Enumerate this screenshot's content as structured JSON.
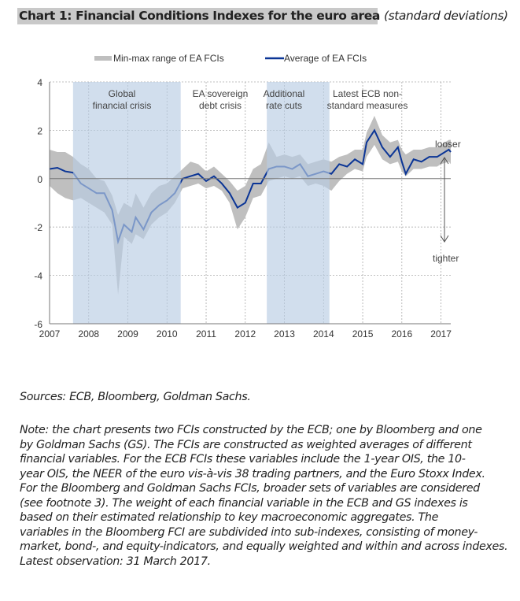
{
  "title": {
    "main": "Chart 1: Financial Conditions Indexes for the euro area",
    "unit": "(standard deviations)"
  },
  "chart_data": {
    "type": "line",
    "legend": {
      "placement": "top",
      "entries": [
        "Min-max range of EA FCIs",
        "Average of EA FCIs"
      ]
    },
    "ylim": [
      -6,
      4
    ],
    "yticks": [
      4,
      2,
      0,
      -2,
      -4,
      -6
    ],
    "xlim": [
      2007,
      2017.25
    ],
    "xticks": [
      2007,
      2008,
      2009,
      2010,
      2011,
      2012,
      2013,
      2014,
      2015,
      2016,
      2017
    ],
    "grid": true,
    "colors": {
      "band": "#bfbfbf",
      "line": "#0b3596",
      "shade": "#b8cce4"
    },
    "shaded_periods": [
      {
        "label_lines": [
          "Global",
          "financial crisis"
        ],
        "from": 2007.6,
        "to": 2010.35
      },
      {
        "label_lines": [
          "EA sovereign",
          "debt crisis"
        ],
        "from": null,
        "to": null
      },
      {
        "label_lines": [
          "Additional",
          "rate cuts"
        ],
        "from": 2012.55,
        "to": 2014.15
      },
      {
        "label_lines": [
          "Latest ECB non-",
          "standard measures"
        ],
        "from": null,
        "to": null
      }
    ],
    "side_labels": {
      "top": "looser",
      "bottom": "tighter"
    },
    "x": [
      2007.0,
      2007.2,
      2007.4,
      2007.6,
      2007.8,
      2008.0,
      2008.2,
      2008.4,
      2008.6,
      2008.75,
      2008.9,
      2009.1,
      2009.2,
      2009.4,
      2009.6,
      2009.8,
      2010.0,
      2010.2,
      2010.4,
      2010.6,
      2010.8,
      2011.0,
      2011.2,
      2011.4,
      2011.6,
      2011.8,
      2012.0,
      2012.2,
      2012.4,
      2012.6,
      2012.8,
      2013.0,
      2013.2,
      2013.4,
      2013.6,
      2013.8,
      2014.0,
      2014.2,
      2014.4,
      2014.6,
      2014.8,
      2015.0,
      2015.1,
      2015.3,
      2015.5,
      2015.7,
      2015.9,
      2016.0,
      2016.1,
      2016.3,
      2016.5,
      2016.7,
      2016.9,
      2017.0,
      2017.2,
      2017.25
    ],
    "average": [
      0.4,
      0.45,
      0.3,
      0.25,
      -0.2,
      -0.4,
      -0.6,
      -0.6,
      -1.3,
      -2.6,
      -1.9,
      -2.2,
      -1.6,
      -2.1,
      -1.4,
      -1.1,
      -0.9,
      -0.6,
      0.0,
      0.1,
      0.2,
      -0.1,
      0.1,
      -0.2,
      -0.6,
      -1.2,
      -1.0,
      -0.2,
      -0.2,
      0.4,
      0.5,
      0.5,
      0.4,
      0.6,
      0.1,
      0.2,
      0.3,
      0.2,
      0.6,
      0.5,
      0.8,
      0.6,
      1.5,
      2.0,
      1.3,
      0.9,
      1.3,
      0.7,
      0.2,
      0.8,
      0.7,
      0.9,
      0.9,
      1.0,
      1.2,
      1.1
    ],
    "max": [
      1.2,
      1.1,
      1.1,
      0.9,
      0.6,
      0.4,
      0.0,
      -0.1,
      -0.7,
      -1.5,
      -1.0,
      -1.2,
      -0.6,
      -1.2,
      -0.6,
      -0.3,
      -0.2,
      0.1,
      0.4,
      0.7,
      0.6,
      0.3,
      0.5,
      0.2,
      -0.1,
      -0.5,
      -0.3,
      0.4,
      0.6,
      1.5,
      0.9,
      1.0,
      0.9,
      1.0,
      0.6,
      0.7,
      0.8,
      0.7,
      0.9,
      1.0,
      1.2,
      1.2,
      1.9,
      2.6,
      1.8,
      1.5,
      1.6,
      1.2,
      1.0,
      1.2,
      1.2,
      1.3,
      1.3,
      1.4,
      1.6,
      1.6
    ],
    "min": [
      -0.3,
      -0.6,
      -0.8,
      -0.9,
      -0.8,
      -1.0,
      -1.2,
      -1.4,
      -1.9,
      -4.8,
      -2.4,
      -2.7,
      -2.3,
      -2.5,
      -1.9,
      -1.6,
      -1.4,
      -1.0,
      -0.4,
      -0.3,
      -0.2,
      -0.4,
      -0.3,
      -0.5,
      -1.0,
      -2.1,
      -1.6,
      -0.8,
      -0.7,
      -0.1,
      0.0,
      0.1,
      0.0,
      0.1,
      -0.3,
      -0.2,
      -0.3,
      -0.5,
      -0.1,
      0.2,
      0.4,
      0.3,
      0.9,
      1.4,
      0.8,
      0.6,
      0.7,
      0.3,
      0.1,
      0.4,
      0.4,
      0.5,
      0.5,
      0.6,
      0.7,
      0.6
    ]
  },
  "sources": "Sources: ECB, Bloomberg, Goldman Sachs.",
  "note_lines": [
    "Note: the chart presents two FCIs constructed by the ECB; one by Bloomberg and one",
    "by Goldman Sachs (GS). The FCIs are constructed as weighted averages of different",
    "financial variables. For the ECB FCIs these variables include the 1-year OIS, the 10-",
    "year OIS, the NEER of the euro vis-à-vis 38 trading partners, and the Euro Stoxx Index.",
    "For the Bloomberg and Goldman Sachs FCIs, broader sets of variables are considered",
    "(see footnote 3). The weight of each financial variable in the ECB and GS indexes is",
    "based on their estimated relationship to key macroeconomic aggregates. The",
    "variables in the Bloomberg FCI are subdivided into sub-indexes, consisting of money-",
    "market, bond-, and equity-indicators, and equally weighted and within and across indexes.",
    "Latest observation: 31 March 2017."
  ]
}
